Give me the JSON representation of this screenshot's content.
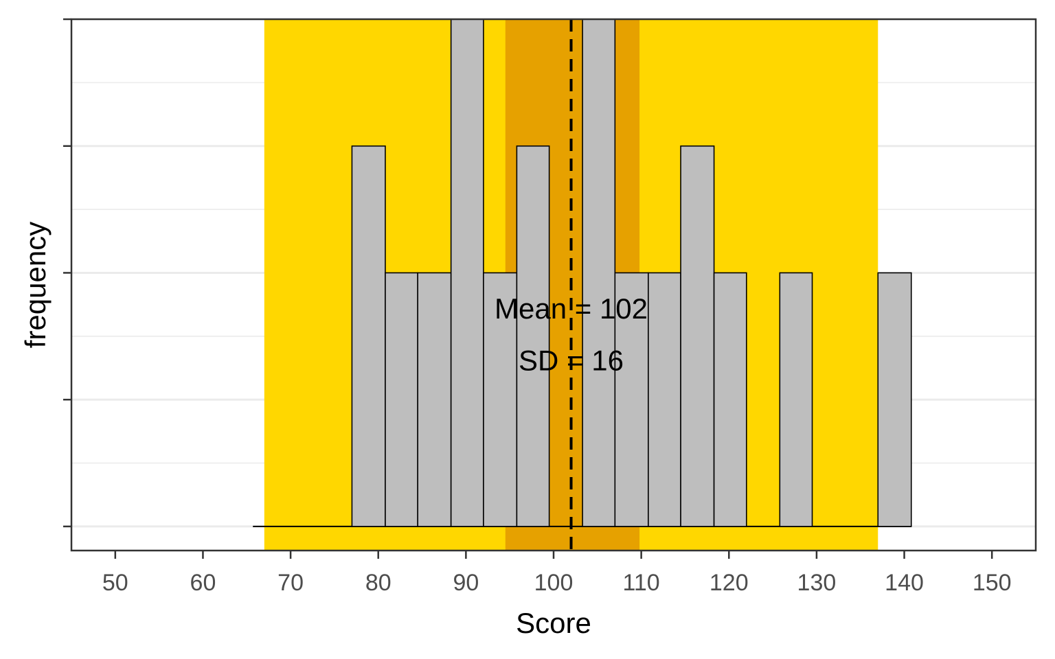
{
  "chart_data": {
    "type": "bar",
    "title": "",
    "xlabel": "Score",
    "ylabel": "frequency",
    "xlim": [
      45,
      155
    ],
    "ylim": [
      -0.19,
      4.0
    ],
    "x_ticks": [
      50,
      60,
      70,
      80,
      90,
      100,
      110,
      120,
      130,
      140,
      150
    ],
    "y_ticks": [
      0,
      1,
      2,
      3,
      4
    ],
    "grid": true,
    "bins": [
      {
        "start": 77.0,
        "end": 80.8,
        "count": 3
      },
      {
        "start": 80.8,
        "end": 84.5,
        "count": 2
      },
      {
        "start": 84.5,
        "end": 88.3,
        "count": 2
      },
      {
        "start": 88.3,
        "end": 92.0,
        "count": 4
      },
      {
        "start": 92.0,
        "end": 95.8,
        "count": 2
      },
      {
        "start": 95.8,
        "end": 99.5,
        "count": 3
      },
      {
        "start": 99.5,
        "end": 103.3,
        "count": 0
      },
      {
        "start": 103.3,
        "end": 107.0,
        "count": 4
      },
      {
        "start": 107.0,
        "end": 110.8,
        "count": 2
      },
      {
        "start": 110.8,
        "end": 114.5,
        "count": 2
      },
      {
        "start": 114.5,
        "end": 118.3,
        "count": 3
      },
      {
        "start": 118.3,
        "end": 122.0,
        "count": 2
      },
      {
        "start": 122.0,
        "end": 125.8,
        "count": 0
      },
      {
        "start": 125.8,
        "end": 129.5,
        "count": 2
      },
      {
        "start": 129.5,
        "end": 133.3,
        "count": 0
      },
      {
        "start": 133.3,
        "end": 137.0,
        "count": 0
      },
      {
        "start": 137.0,
        "end": 140.8,
        "count": 2
      }
    ],
    "baseline_start": 65.7,
    "mean": 102,
    "sd": 16,
    "outer_band": [
      67,
      137
    ],
    "inner_band": [
      94.5,
      109.8
    ],
    "annotations": [
      "Mean = 102",
      "SD = 16"
    ],
    "colors": {
      "bar_fill": "#bebebe",
      "bar_stroke": "#000000",
      "outer_band": "#ffd700",
      "inner_band": "#e6a100",
      "mean_line": "#000000",
      "grid": "#ebebeb",
      "axis": "#333333"
    }
  }
}
